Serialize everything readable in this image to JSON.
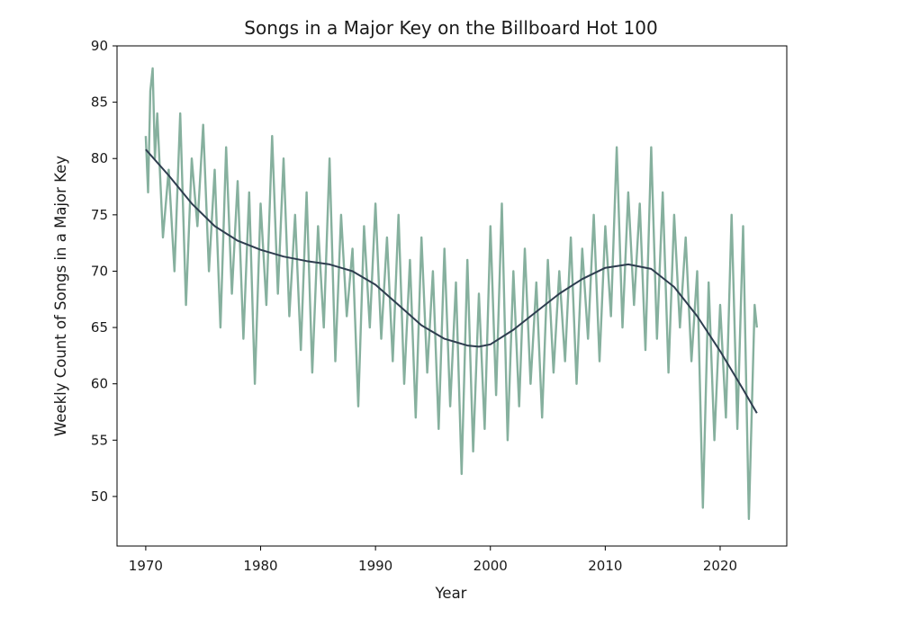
{
  "chart_data": {
    "type": "line",
    "title": "Songs in a Major Key on the Billboard Hot 100",
    "xlabel": "Year",
    "ylabel": "Weekly Count of Songs in a Major Key",
    "xlim": [
      1967.5,
      2025.8
    ],
    "ylim": [
      45.6,
      90
    ],
    "xticks": [
      1970,
      1980,
      1990,
      2000,
      2010,
      2020
    ],
    "xtick_labels": [
      "1970",
      "1980",
      "1990",
      "2000",
      "2010",
      "2020"
    ],
    "yticks": [
      50,
      55,
      60,
      65,
      70,
      75,
      80,
      85,
      90
    ],
    "ytick_labels": [
      "50",
      "55",
      "60",
      "65",
      "70",
      "75",
      "80",
      "85",
      "90"
    ],
    "grid": false,
    "legend": "none",
    "series": [
      {
        "kind": "weekly",
        "color": "#86b09e",
        "x": [
          1970.0,
          1970.2,
          1970.4,
          1970.6,
          1970.8,
          1971.0,
          1971.5,
          1972.0,
          1972.5,
          1973.0,
          1973.5,
          1974.0,
          1974.5,
          1975.0,
          1975.5,
          1976.0,
          1976.5,
          1977.0,
          1977.5,
          1978.0,
          1978.5,
          1979.0,
          1979.5,
          1980.0,
          1980.5,
          1981.0,
          1981.5,
          1982.0,
          1982.5,
          1983.0,
          1983.5,
          1984.0,
          1984.5,
          1985.0,
          1985.5,
          1986.0,
          1986.5,
          1987.0,
          1987.5,
          1988.0,
          1988.5,
          1989.0,
          1989.5,
          1990.0,
          1990.5,
          1991.0,
          1991.5,
          1992.0,
          1992.5,
          1993.0,
          1993.5,
          1994.0,
          1994.5,
          1995.0,
          1995.5,
          1996.0,
          1996.5,
          1997.0,
          1997.5,
          1998.0,
          1998.5,
          1999.0,
          1999.5,
          2000.0,
          2000.5,
          2001.0,
          2001.5,
          2002.0,
          2002.5,
          2003.0,
          2003.5,
          2004.0,
          2004.5,
          2005.0,
          2005.5,
          2006.0,
          2006.5,
          2007.0,
          2007.5,
          2008.0,
          2008.5,
          2009.0,
          2009.5,
          2010.0,
          2010.5,
          2011.0,
          2011.5,
          2012.0,
          2012.5,
          2013.0,
          2013.5,
          2014.0,
          2014.5,
          2015.0,
          2015.5,
          2016.0,
          2016.5,
          2017.0,
          2017.5,
          2018.0,
          2018.5,
          2019.0,
          2019.5,
          2020.0,
          2020.5,
          2021.0,
          2021.5,
          2022.0,
          2022.5,
          2023.0,
          2023.2
        ],
        "y": [
          82,
          77,
          86,
          88,
          80,
          84,
          73,
          79,
          70,
          84,
          67,
          80,
          74,
          83,
          70,
          79,
          65,
          81,
          68,
          78,
          64,
          77,
          60,
          76,
          67,
          82,
          68,
          80,
          66,
          75,
          63,
          77,
          61,
          74,
          65,
          80,
          62,
          75,
          66,
          72,
          58,
          74,
          65,
          76,
          64,
          73,
          62,
          75,
          60,
          71,
          57,
          73,
          61,
          70,
          56,
          72,
          58,
          69,
          52,
          71,
          54,
          68,
          56,
          74,
          59,
          76,
          55,
          70,
          58,
          72,
          60,
          69,
          57,
          71,
          61,
          70,
          62,
          73,
          60,
          72,
          64,
          75,
          62,
          74,
          66,
          81,
          65,
          77,
          67,
          76,
          63,
          81,
          64,
          77,
          61,
          75,
          65,
          73,
          62,
          70,
          49,
          69,
          55,
          67,
          57,
          75,
          56,
          74,
          48,
          67,
          65
        ]
      },
      {
        "kind": "trend",
        "color": "#2e3d4f",
        "x": [
          1970,
          1972,
          1974,
          1976,
          1978,
          1980,
          1982,
          1984,
          1986,
          1988,
          1990,
          1992,
          1994,
          1996,
          1998,
          1999,
          2000,
          2002,
          2004,
          2006,
          2008,
          2010,
          2012,
          2014,
          2016,
          2018,
          2020,
          2022,
          2023.2
        ],
        "y": [
          80.8,
          78.5,
          76.0,
          74.0,
          72.7,
          71.9,
          71.3,
          70.9,
          70.6,
          70.0,
          68.8,
          67.0,
          65.2,
          64.0,
          63.4,
          63.3,
          63.5,
          64.8,
          66.4,
          68.0,
          69.3,
          70.3,
          70.6,
          70.2,
          68.6,
          66.0,
          62.9,
          59.5,
          57.4
        ]
      }
    ]
  }
}
